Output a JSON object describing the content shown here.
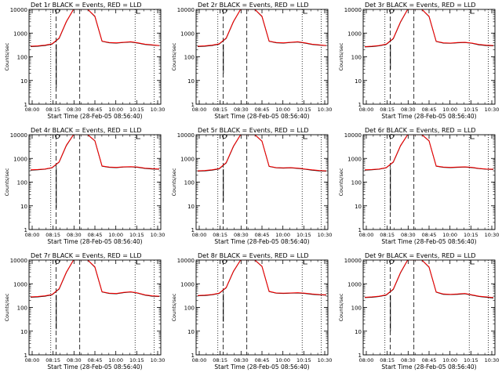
{
  "figure": {
    "ylabel": "Counts/sec",
    "xlabel": "Start Time (28-Feb-05 08:56:40)",
    "title_suffix": "BLACK = Events, RED = LLD",
    "colors": {
      "events": "#000000",
      "lld": "#ff0000",
      "background": "#ffffff"
    }
  },
  "chart_data": [
    {
      "type": "line",
      "title": "Det 1r BLACK = Events, RED = LLD",
      "xlabel": "Start Time (28-Feb-05 08:56:40)",
      "ylabel": "Counts/sec",
      "xticks": [
        "08:00",
        "08:15",
        "08:30",
        "08:45",
        "10:00",
        "10:15",
        "10:30"
      ],
      "yticks": [
        "1",
        "10",
        "100",
        "1000",
        "10000"
      ],
      "yscale": "log",
      "ylim": [
        1,
        10000
      ],
      "series": [
        {
          "name": "Events",
          "color": "#000000",
          "values": [
            270,
            280,
            300,
            340,
            600,
            3000,
            10000,
            10000,
            10000,
            5000,
            450,
            390,
            380,
            400,
            420,
            380,
            330,
            310,
            295
          ]
        },
        {
          "name": "LLD",
          "color": "#ff0000",
          "values": [
            280,
            290,
            310,
            350,
            620,
            3100,
            10000,
            10000,
            10000,
            5200,
            460,
            400,
            390,
            410,
            430,
            390,
            340,
            320,
            300
          ]
        }
      ],
      "dip": {
        "index": 4,
        "value": 5
      }
    },
    {
      "type": "line",
      "title": "Det 2r BLACK = Events, RED = LLD",
      "xlabel": "Start Time (28-Feb-05 08:56:40)",
      "ylabel": "Counts/sec",
      "xticks": [
        "08:00",
        "08:15",
        "08:30",
        "08:45",
        "10:00",
        "10:15",
        "10:30"
      ],
      "yticks": [
        "1",
        "10",
        "100",
        "1000",
        "10000"
      ],
      "yscale": "log",
      "ylim": [
        1,
        10000
      ],
      "series": [
        {
          "name": "Events",
          "color": "#000000",
          "values": [
            270,
            280,
            300,
            340,
            600,
            3000,
            10000,
            10000,
            10000,
            5000,
            450,
            390,
            380,
            400,
            420,
            380,
            330,
            310,
            295
          ]
        },
        {
          "name": "LLD",
          "color": "#ff0000",
          "values": [
            280,
            290,
            310,
            350,
            620,
            3100,
            10000,
            10000,
            10000,
            5200,
            460,
            400,
            390,
            410,
            430,
            390,
            340,
            320,
            300
          ]
        }
      ],
      "dip": {
        "index": 4,
        "value": 20
      }
    },
    {
      "type": "line",
      "title": "Det 3r BLACK = Events, RED = LLD",
      "xlabel": "Start Time (28-Feb-05 08:56:40)",
      "ylabel": "Counts/sec",
      "xticks": [
        "08:00",
        "08:15",
        "08:30",
        "08:45",
        "10:00",
        "10:15",
        "10:30"
      ],
      "yticks": [
        "1",
        "10",
        "100",
        "1000",
        "10000"
      ],
      "yscale": "log",
      "ylim": [
        1,
        10000
      ],
      "series": [
        {
          "name": "Events",
          "color": "#000000",
          "values": [
            260,
            270,
            290,
            330,
            580,
            2900,
            10000,
            10000,
            10000,
            5000,
            440,
            380,
            370,
            390,
            400,
            370,
            320,
            300,
            290
          ]
        },
        {
          "name": "LLD",
          "color": "#ff0000",
          "values": [
            270,
            280,
            300,
            340,
            600,
            3000,
            10000,
            10000,
            10000,
            5100,
            450,
            390,
            380,
            400,
            410,
            380,
            330,
            310,
            300
          ]
        }
      ],
      "dip": {
        "index": 4,
        "value": 30
      }
    },
    {
      "type": "line",
      "title": "Det 4r BLACK = Events, RED = LLD",
      "xlabel": "Start Time (28-Feb-05 08:56:40)",
      "ylabel": "Counts/sec",
      "xticks": [
        "08:00",
        "08:15",
        "08:30",
        "08:45",
        "10:00",
        "10:15",
        "10:30"
      ],
      "yticks": [
        "1",
        "10",
        "100",
        "1000",
        "10000"
      ],
      "yscale": "log",
      "ylim": [
        1,
        10000
      ],
      "series": [
        {
          "name": "Events",
          "color": "#000000",
          "values": [
            320,
            330,
            350,
            400,
            700,
            3500,
            10000,
            10000,
            10000,
            5500,
            470,
            420,
            410,
            430,
            440,
            420,
            380,
            360,
            350
          ]
        },
        {
          "name": "LLD",
          "color": "#ff0000",
          "values": [
            330,
            340,
            360,
            410,
            720,
            3600,
            10000,
            10000,
            10000,
            5600,
            480,
            430,
            420,
            440,
            450,
            430,
            390,
            370,
            360
          ]
        }
      ],
      "dip": {
        "index": 4,
        "value": 8
      }
    },
    {
      "type": "line",
      "title": "Det 5r BLACK = Events, RED = LLD",
      "xlabel": "Start Time (28-Feb-05 08:56:40)",
      "ylabel": "Counts/sec",
      "xticks": [
        "08:00",
        "08:15",
        "08:30",
        "08:45",
        "10:00",
        "10:15",
        "10:30"
      ],
      "yticks": [
        "1",
        "10",
        "100",
        "1000",
        "10000"
      ],
      "yscale": "log",
      "ylim": [
        1,
        10000
      ],
      "series": [
        {
          "name": "Events",
          "color": "#000000",
          "values": [
            290,
            300,
            320,
            360,
            650,
            3200,
            10000,
            10000,
            10000,
            5300,
            460,
            400,
            390,
            400,
            380,
            350,
            320,
            300,
            290
          ]
        },
        {
          "name": "LLD",
          "color": "#ff0000",
          "values": [
            300,
            310,
            330,
            370,
            670,
            3300,
            10000,
            10000,
            10000,
            5400,
            470,
            410,
            400,
            410,
            390,
            360,
            330,
            310,
            300
          ]
        }
      ],
      "dip": {
        "index": 4,
        "value": 15
      }
    },
    {
      "type": "line",
      "title": "Det 6r BLACK = Events, RED = LLD",
      "xlabel": "Start Time (28-Feb-05 08:56:40)",
      "ylabel": "Counts/sec",
      "xticks": [
        "08:00",
        "08:15",
        "08:30",
        "08:45",
        "10:00",
        "10:15",
        "10:30"
      ],
      "yticks": [
        "1",
        "10",
        "100",
        "1000",
        "10000"
      ],
      "yscale": "log",
      "ylim": [
        1,
        10000
      ],
      "series": [
        {
          "name": "Events",
          "color": "#000000",
          "values": [
            320,
            330,
            350,
            400,
            690,
            3400,
            10000,
            10000,
            10000,
            5500,
            470,
            420,
            410,
            420,
            430,
            410,
            370,
            350,
            340
          ]
        },
        {
          "name": "LLD",
          "color": "#ff0000",
          "values": [
            330,
            340,
            360,
            410,
            710,
            3500,
            10000,
            10000,
            10000,
            5600,
            480,
            430,
            420,
            430,
            440,
            420,
            380,
            360,
            350
          ]
        }
      ],
      "dip": {
        "index": 4,
        "value": 6
      }
    },
    {
      "type": "line",
      "title": "Det 7r BLACK = Events, RED = LLD",
      "xlabel": "Start Time (28-Feb-05 08:56:40)",
      "ylabel": "Counts/sec",
      "xticks": [
        "08:00",
        "08:15",
        "08:30",
        "08:45",
        "10:00",
        "10:15",
        "10:30"
      ],
      "yticks": [
        "1",
        "10",
        "100",
        "1000",
        "10000"
      ],
      "yscale": "log",
      "ylim": [
        1,
        10000
      ],
      "series": [
        {
          "name": "Events",
          "color": "#000000",
          "values": [
            270,
            280,
            300,
            340,
            600,
            3000,
            10000,
            10000,
            10000,
            5000,
            450,
            390,
            380,
            420,
            450,
            400,
            330,
            300,
            290
          ]
        },
        {
          "name": "LLD",
          "color": "#ff0000",
          "values": [
            280,
            290,
            310,
            350,
            620,
            3100,
            10000,
            10000,
            10000,
            5200,
            460,
            400,
            390,
            430,
            460,
            410,
            340,
            310,
            300
          ]
        }
      ],
      "dip": {
        "index": 4,
        "value": 12
      }
    },
    {
      "type": "line",
      "title": "Det 8r BLACK = Events, RED = LLD",
      "xlabel": "Start Time (28-Feb-05 08:56:40)",
      "ylabel": "Counts/sec",
      "xticks": [
        "08:00",
        "08:15",
        "08:30",
        "08:45",
        "10:00",
        "10:15",
        "10:30"
      ],
      "yticks": [
        "1",
        "10",
        "100",
        "1000",
        "10000"
      ],
      "yscale": "log",
      "ylim": [
        1,
        10000
      ],
      "series": [
        {
          "name": "Events",
          "color": "#000000",
          "values": [
            310,
            320,
            340,
            390,
            680,
            3300,
            10000,
            10000,
            10000,
            5400,
            470,
            400,
            390,
            400,
            410,
            390,
            360,
            340,
            330
          ]
        },
        {
          "name": "LLD",
          "color": "#ff0000",
          "values": [
            320,
            330,
            350,
            400,
            700,
            3400,
            10000,
            10000,
            10000,
            5500,
            480,
            410,
            400,
            410,
            420,
            400,
            370,
            350,
            340
          ]
        }
      ],
      "dip": {
        "index": 4,
        "value": 25
      }
    },
    {
      "type": "line",
      "title": "Det 9r BLACK = Events, RED = LLD",
      "xlabel": "Start Time (28-Feb-05 08:56:40)",
      "ylabel": "Counts/sec",
      "xticks": [
        "08:00",
        "08:15",
        "08:30",
        "08:45",
        "10:00",
        "10:15",
        "10:30"
      ],
      "yticks": [
        "1",
        "10",
        "100",
        "1000",
        "10000"
      ],
      "yscale": "log",
      "ylim": [
        1,
        10000
      ],
      "series": [
        {
          "name": "Events",
          "color": "#000000",
          "values": [
            260,
            270,
            290,
            330,
            580,
            2900,
            10000,
            10000,
            10000,
            5000,
            440,
            360,
            350,
            360,
            380,
            330,
            290,
            270,
            250
          ]
        },
        {
          "name": "LLD",
          "color": "#ff0000",
          "values": [
            270,
            280,
            300,
            340,
            600,
            3000,
            10000,
            10000,
            10000,
            5100,
            450,
            370,
            360,
            370,
            390,
            340,
            300,
            280,
            260
          ]
        }
      ],
      "dip": {
        "index": 4,
        "value": 10
      }
    }
  ]
}
